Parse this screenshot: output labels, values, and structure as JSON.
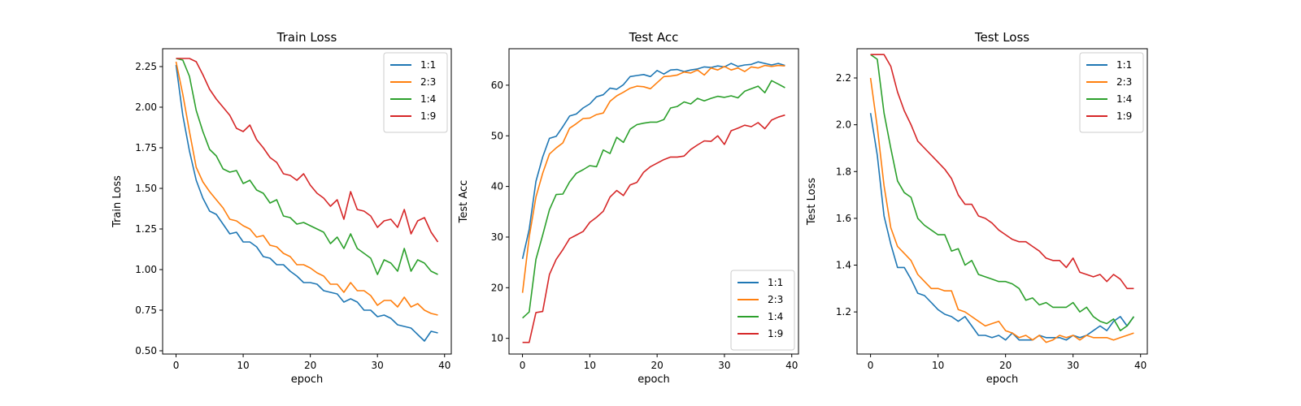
{
  "chart_data": [
    {
      "type": "line",
      "title": "Train Loss",
      "xlabel": "epoch",
      "ylabel": "Train Loss",
      "xlim": [
        -2,
        41
      ],
      "ylim": [
        0.48,
        2.36
      ],
      "xticks": [
        0,
        10,
        20,
        30,
        40
      ],
      "yticks": [
        0.5,
        0.75,
        1.0,
        1.25,
        1.5,
        1.75,
        2.0,
        2.25
      ],
      "tick_decimals": 2,
      "grid": false,
      "legend": "upper-right",
      "x_start": 0,
      "series": [
        {
          "name": "1:1",
          "color": "#1f77b4",
          "values": [
            2.26,
            1.95,
            1.73,
            1.55,
            1.44,
            1.36,
            1.34,
            1.28,
            1.22,
            1.23,
            1.17,
            1.17,
            1.14,
            1.08,
            1.07,
            1.03,
            1.03,
            0.99,
            0.96,
            0.92,
            0.92,
            0.91,
            0.87,
            0.86,
            0.85,
            0.8,
            0.82,
            0.8,
            0.75,
            0.75,
            0.71,
            0.72,
            0.7,
            0.66,
            0.65,
            0.64,
            0.6,
            0.56,
            0.62,
            0.61
          ]
        },
        {
          "name": "2:3",
          "color": "#ff7f0e",
          "values": [
            2.28,
            2.08,
            1.85,
            1.63,
            1.54,
            1.48,
            1.43,
            1.38,
            1.31,
            1.3,
            1.27,
            1.25,
            1.2,
            1.21,
            1.15,
            1.14,
            1.1,
            1.08,
            1.03,
            1.03,
            1.01,
            0.98,
            0.96,
            0.91,
            0.91,
            0.86,
            0.92,
            0.87,
            0.87,
            0.84,
            0.78,
            0.81,
            0.81,
            0.77,
            0.83,
            0.77,
            0.79,
            0.75,
            0.73,
            0.72
          ]
        },
        {
          "name": "1:4",
          "color": "#2ca02c",
          "values": [
            2.3,
            2.29,
            2.19,
            1.98,
            1.85,
            1.74,
            1.7,
            1.62,
            1.6,
            1.61,
            1.53,
            1.55,
            1.49,
            1.47,
            1.41,
            1.43,
            1.33,
            1.32,
            1.28,
            1.29,
            1.27,
            1.25,
            1.23,
            1.16,
            1.2,
            1.13,
            1.22,
            1.13,
            1.1,
            1.07,
            0.97,
            1.06,
            1.04,
            0.99,
            1.13,
            0.99,
            1.06,
            1.04,
            0.99,
            0.97
          ]
        },
        {
          "name": "1:9",
          "color": "#d62728",
          "values": [
            2.3,
            2.3,
            2.3,
            2.28,
            2.2,
            2.11,
            2.05,
            2.0,
            1.95,
            1.87,
            1.85,
            1.89,
            1.8,
            1.75,
            1.69,
            1.66,
            1.59,
            1.58,
            1.55,
            1.59,
            1.52,
            1.47,
            1.44,
            1.39,
            1.43,
            1.31,
            1.48,
            1.37,
            1.36,
            1.33,
            1.26,
            1.3,
            1.31,
            1.26,
            1.37,
            1.22,
            1.3,
            1.32,
            1.23,
            1.17
          ]
        }
      ]
    },
    {
      "type": "line",
      "title": "Test Acc",
      "xlabel": "epoch",
      "ylabel": "Test Acc",
      "xlim": [
        -2,
        41
      ],
      "ylim": [
        6.9,
        67.2
      ],
      "xticks": [
        0,
        10,
        20,
        30,
        40
      ],
      "yticks": [
        10,
        20,
        30,
        40,
        50,
        60
      ],
      "tick_decimals": 0,
      "grid": false,
      "legend": "lower-right",
      "x_start": 0,
      "series": [
        {
          "name": "1:1",
          "color": "#1f77b4",
          "values": [
            25.7,
            31.5,
            41.0,
            45.8,
            49.5,
            49.9,
            51.8,
            53.9,
            54.3,
            55.5,
            56.3,
            57.7,
            58.1,
            59.4,
            59.2,
            60.1,
            61.7,
            61.9,
            62.1,
            61.7,
            62.9,
            62.2,
            63.0,
            63.1,
            62.7,
            63.0,
            63.2,
            63.6,
            63.5,
            63.8,
            63.6,
            64.3,
            63.7,
            64.0,
            64.1,
            64.6,
            64.3,
            64.0,
            64.3,
            63.9
          ]
        },
        {
          "name": "2:3",
          "color": "#ff7f0e",
          "values": [
            19.0,
            30.0,
            37.9,
            42.6,
            46.4,
            47.6,
            48.6,
            51.5,
            52.4,
            53.4,
            53.5,
            54.2,
            54.5,
            56.8,
            57.9,
            58.6,
            59.4,
            59.8,
            59.7,
            59.3,
            60.5,
            61.7,
            61.8,
            62.0,
            62.6,
            62.4,
            63.0,
            62.0,
            63.4,
            63.0,
            63.7,
            63.0,
            63.4,
            62.7,
            63.6,
            63.4,
            63.9,
            63.7,
            63.9,
            63.8
          ]
        },
        {
          "name": "1:4",
          "color": "#2ca02c",
          "values": [
            14.0,
            15.2,
            25.6,
            30.4,
            35.4,
            38.4,
            38.5,
            40.9,
            42.6,
            43.3,
            44.1,
            43.9,
            47.2,
            46.5,
            49.7,
            48.7,
            51.3,
            52.2,
            52.5,
            52.7,
            52.7,
            53.2,
            55.5,
            55.8,
            56.7,
            56.3,
            57.4,
            56.9,
            57.4,
            57.8,
            57.6,
            57.9,
            57.5,
            58.8,
            59.3,
            59.8,
            58.5,
            60.9,
            60.2,
            59.5
          ]
        },
        {
          "name": "1:9",
          "color": "#d62728",
          "values": [
            9.2,
            9.2,
            15.1,
            15.3,
            22.6,
            25.6,
            27.5,
            29.7,
            30.4,
            31.1,
            32.9,
            33.9,
            35.1,
            37.9,
            39.2,
            38.2,
            40.3,
            40.8,
            42.8,
            43.9,
            44.6,
            45.3,
            45.8,
            45.8,
            46.0,
            47.3,
            48.2,
            49.0,
            48.9,
            50.0,
            48.3,
            51.0,
            51.5,
            52.1,
            51.8,
            52.6,
            51.4,
            53.1,
            53.7,
            54.1
          ]
        }
      ]
    },
    {
      "type": "line",
      "title": "Test Loss",
      "xlabel": "epoch",
      "ylabel": "Test Loss",
      "xlim": [
        -2,
        41
      ],
      "ylim": [
        1.02,
        2.325
      ],
      "xticks": [
        0,
        10,
        20,
        30,
        40
      ],
      "yticks": [
        1.2,
        1.4,
        1.6,
        1.8,
        2.0,
        2.2
      ],
      "tick_decimals": 1,
      "grid": false,
      "legend": "upper-right",
      "x_start": 0,
      "series": [
        {
          "name": "1:1",
          "color": "#1f77b4",
          "values": [
            2.05,
            1.87,
            1.61,
            1.49,
            1.39,
            1.39,
            1.34,
            1.28,
            1.27,
            1.24,
            1.21,
            1.19,
            1.18,
            1.16,
            1.18,
            1.14,
            1.1,
            1.1,
            1.09,
            1.1,
            1.08,
            1.11,
            1.08,
            1.08,
            1.08,
            1.1,
            1.09,
            1.09,
            1.09,
            1.08,
            1.1,
            1.09,
            1.1,
            1.12,
            1.14,
            1.12,
            1.16,
            1.18,
            1.14,
            1.18
          ]
        },
        {
          "name": "2:3",
          "color": "#ff7f0e",
          "values": [
            2.2,
            1.99,
            1.74,
            1.56,
            1.48,
            1.45,
            1.42,
            1.36,
            1.33,
            1.3,
            1.3,
            1.29,
            1.29,
            1.21,
            1.2,
            1.18,
            1.16,
            1.14,
            1.15,
            1.16,
            1.12,
            1.11,
            1.09,
            1.1,
            1.08,
            1.1,
            1.07,
            1.08,
            1.1,
            1.09,
            1.1,
            1.08,
            1.1,
            1.09,
            1.09,
            1.09,
            1.08,
            1.09,
            1.1,
            1.11
          ]
        },
        {
          "name": "1:4",
          "color": "#2ca02c",
          "values": [
            2.3,
            2.28,
            2.05,
            1.9,
            1.76,
            1.71,
            1.69,
            1.6,
            1.57,
            1.55,
            1.53,
            1.53,
            1.46,
            1.47,
            1.4,
            1.42,
            1.36,
            1.35,
            1.34,
            1.33,
            1.33,
            1.32,
            1.3,
            1.25,
            1.26,
            1.23,
            1.24,
            1.22,
            1.22,
            1.22,
            1.24,
            1.2,
            1.22,
            1.18,
            1.16,
            1.15,
            1.17,
            1.12,
            1.14,
            1.18
          ]
        },
        {
          "name": "1:9",
          "color": "#d62728",
          "values": [
            2.3,
            2.3,
            2.3,
            2.25,
            2.14,
            2.06,
            2.0,
            1.93,
            1.9,
            1.87,
            1.84,
            1.81,
            1.77,
            1.7,
            1.66,
            1.66,
            1.61,
            1.6,
            1.58,
            1.55,
            1.53,
            1.51,
            1.5,
            1.5,
            1.48,
            1.46,
            1.43,
            1.42,
            1.42,
            1.39,
            1.43,
            1.37,
            1.36,
            1.35,
            1.36,
            1.33,
            1.36,
            1.34,
            1.3,
            1.3
          ]
        }
      ]
    }
  ]
}
